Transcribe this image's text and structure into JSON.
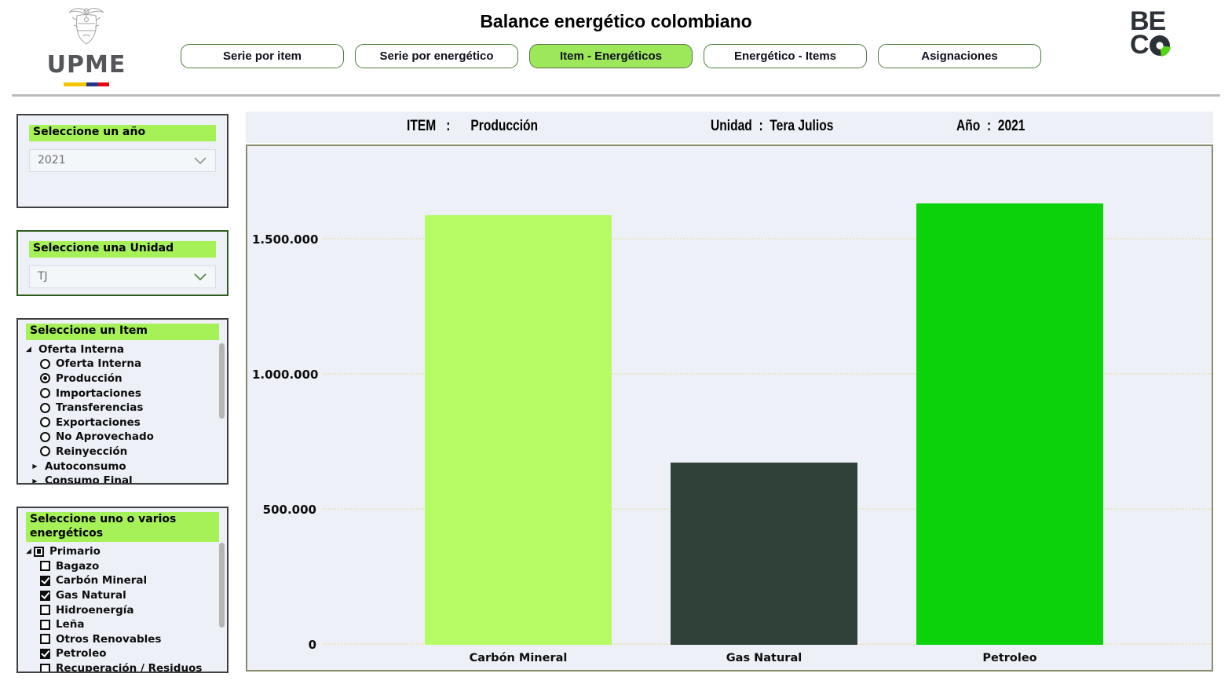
{
  "header": {
    "title": "Balance energético colombiano",
    "upme_text": "UPME",
    "beco_line1": "BE",
    "beco_c": "C",
    "tabs": [
      {
        "label": "Serie por item",
        "active": false
      },
      {
        "label": "Serie por energético",
        "active": false
      },
      {
        "label": "Item - Energéticos",
        "active": true
      },
      {
        "label": "Energético - Items",
        "active": false
      },
      {
        "label": "Asignaciones",
        "active": false
      }
    ]
  },
  "sidebar": {
    "year_panel": {
      "label": "Seleccione un año",
      "value": "2021"
    },
    "unit_panel": {
      "label": "Seleccione una Unidad",
      "value": "TJ"
    },
    "item_panel": {
      "label": "Seleccione un Item",
      "tree": [
        {
          "type": "group",
          "label": "Oferta Interna",
          "expanded": true
        },
        {
          "type": "radio",
          "label": "Oferta Interna",
          "selected": false
        },
        {
          "type": "radio",
          "label": "Producción",
          "selected": true
        },
        {
          "type": "radio",
          "label": "Importaciones",
          "selected": false
        },
        {
          "type": "radio",
          "label": "Transferencias",
          "selected": false
        },
        {
          "type": "radio",
          "label": "Exportaciones",
          "selected": false
        },
        {
          "type": "radio",
          "label": "No Aprovechado",
          "selected": false
        },
        {
          "type": "radio",
          "label": "Reinyección",
          "selected": false
        },
        {
          "type": "group",
          "label": "Autoconsumo",
          "expanded": false
        },
        {
          "type": "group",
          "label": "Consumo Final",
          "expanded": false
        }
      ]
    },
    "energetics_panel": {
      "label": "Seleccione uno o varios energéticos",
      "tree": [
        {
          "type": "parent",
          "label": "Primario",
          "state": "indeterminate",
          "expanded": true
        },
        {
          "type": "checkbox",
          "label": "Bagazo",
          "checked": false
        },
        {
          "type": "checkbox",
          "label": "Carbón Mineral",
          "checked": true
        },
        {
          "type": "checkbox",
          "label": "Gas Natural",
          "checked": true
        },
        {
          "type": "checkbox",
          "label": "Hidroenergía",
          "checked": false
        },
        {
          "type": "checkbox",
          "label": "Leña",
          "checked": false
        },
        {
          "type": "checkbox",
          "label": "Otros Renovables",
          "checked": false
        },
        {
          "type": "checkbox",
          "label": "Petroleo",
          "checked": true
        },
        {
          "type": "checkbox",
          "label": "Recuperación / Residuos",
          "checked": false
        }
      ]
    }
  },
  "chart_header": {
    "item_label": "ITEM",
    "item_value": "Producción",
    "unit_label": "Unidad",
    "unit_value": "Tera Julios",
    "year_label": "Año",
    "year_value": "2021"
  },
  "chart_data": {
    "type": "bar",
    "categories": [
      "Carbón Mineral",
      "Gas Natural",
      "Petroleo"
    ],
    "values": [
      1590000,
      675000,
      1635000
    ],
    "bar_colors": [
      "#b4fb64",
      "#2f4138",
      "#0bd20b"
    ],
    "title": "ITEM : Producción — Unidad : Tera Julios — Año : 2021",
    "xlabel": "",
    "ylabel": "",
    "ylim": [
      0,
      1750000
    ],
    "yticks": [
      0,
      500000,
      1000000,
      1500000
    ],
    "ytick_labels": [
      "0",
      "500.000",
      "1.000.000",
      "1.500.000"
    ],
    "grid": true,
    "legend": "none"
  },
  "colors": {
    "accent_green_highlight": "#a6f158",
    "active_tab_green": "#9ce75a",
    "tab_border_green": "#4c7d3b",
    "panel_bg": "#edf1f7",
    "plot_border": "#8a8a6e",
    "gridline": "#ebe5c6",
    "beco_green": "#56d41c",
    "upme_gray": "#55565a"
  }
}
